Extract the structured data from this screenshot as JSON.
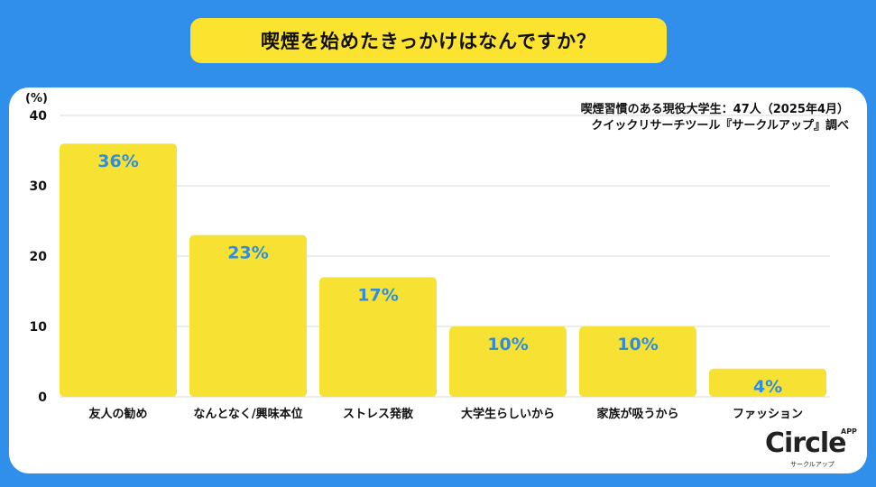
{
  "title": "喫煙を始めたきっかけはなんですか？",
  "source_lines": [
    "喫煙習慣のある現役大学生：47人（2025年4月）",
    "クイックリサーチツール『サークルアップ』調べ"
  ],
  "logo": {
    "main": "Circle",
    "app": "APP",
    "sub": "サークルアップ"
  },
  "colors": {
    "background": "#2f8fea",
    "bar": "#f7e233",
    "value_label": "#2f8ddc",
    "title_box": "#fbe32f"
  },
  "chart_data": {
    "type": "bar",
    "title": "喫煙を始めたきっかけはなんですか？",
    "ylabel": "(%)",
    "xlabel": "",
    "ylim": [
      0,
      40
    ],
    "yticks": [
      0,
      10,
      20,
      30,
      40
    ],
    "grid": true,
    "categories": [
      "友人の勧め",
      "なんとなく/興味本位",
      "ストレス発散",
      "大学生らしいから",
      "家族が吸うから",
      "ファッション"
    ],
    "values": [
      36,
      23,
      17,
      10,
      10,
      4
    ],
    "data_labels": [
      "36%",
      "23%",
      "17%",
      "10%",
      "10%",
      "4%"
    ]
  }
}
